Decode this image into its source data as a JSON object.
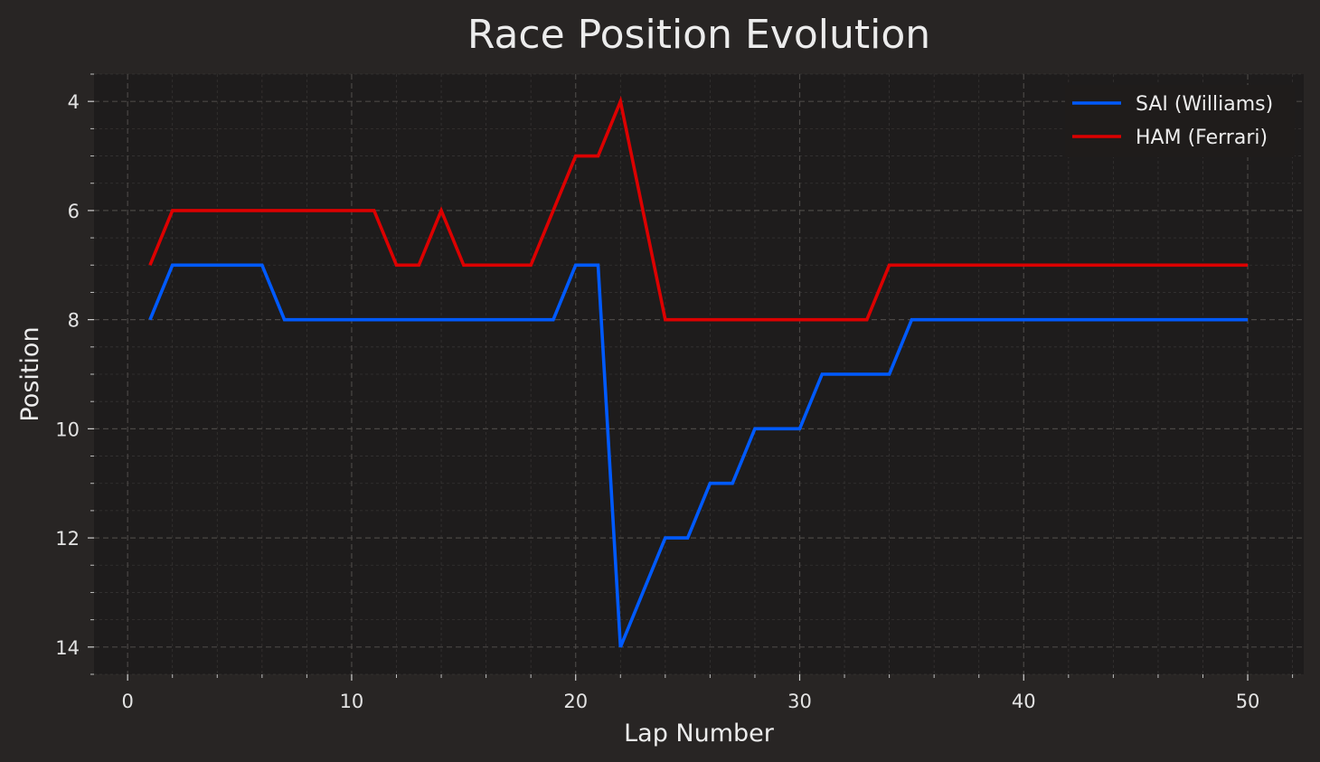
{
  "chart_data": {
    "type": "line",
    "title": "Race Position Evolution",
    "xlabel": "Lap Number",
    "ylabel": "Position",
    "xlim": [
      -1.5,
      52.5
    ],
    "ylim": [
      14.5,
      3.5
    ],
    "y_inverted": true,
    "xticks": [
      0,
      10,
      20,
      30,
      40,
      50
    ],
    "yticks": [
      4,
      6,
      8,
      10,
      12,
      14
    ],
    "grid": true,
    "legend_position": "top-right",
    "series": [
      {
        "name": "SAI (Williams)",
        "color": "#005aff",
        "x": [
          1,
          2,
          3,
          4,
          5,
          6,
          7,
          8,
          9,
          10,
          11,
          12,
          13,
          14,
          15,
          16,
          17,
          18,
          19,
          20,
          21,
          22,
          23,
          24,
          25,
          26,
          27,
          28,
          29,
          30,
          31,
          32,
          33,
          34,
          35,
          36,
          37,
          38,
          39,
          40,
          41,
          42,
          43,
          44,
          45,
          46,
          47,
          48,
          49,
          50
        ],
        "y": [
          8,
          7,
          7,
          7,
          7,
          7,
          8,
          8,
          8,
          8,
          8,
          8,
          8,
          8,
          8,
          8,
          8,
          8,
          8,
          7,
          7,
          14,
          13,
          12,
          12,
          11,
          11,
          10,
          10,
          10,
          9,
          9,
          9,
          9,
          8,
          8,
          8,
          8,
          8,
          8,
          8,
          8,
          8,
          8,
          8,
          8,
          8,
          8,
          8,
          8
        ]
      },
      {
        "name": "HAM (Ferrari)",
        "color": "#dc0000",
        "x": [
          1,
          2,
          3,
          4,
          5,
          6,
          7,
          8,
          9,
          10,
          11,
          12,
          13,
          14,
          15,
          16,
          17,
          18,
          19,
          20,
          21,
          22,
          23,
          24,
          25,
          26,
          27,
          28,
          29,
          30,
          31,
          32,
          33,
          34,
          35,
          36,
          37,
          38,
          39,
          40,
          41,
          42,
          43,
          44,
          45,
          46,
          47,
          48,
          49,
          50
        ],
        "y": [
          7,
          6,
          6,
          6,
          6,
          6,
          6,
          6,
          6,
          6,
          6,
          7,
          7,
          6,
          7,
          7,
          7,
          7,
          6,
          5,
          5,
          4,
          6,
          8,
          8,
          8,
          8,
          8,
          8,
          8,
          8,
          8,
          8,
          7,
          7,
          7,
          7,
          7,
          7,
          7,
          7,
          7,
          7,
          7,
          7,
          7,
          7,
          7,
          7,
          7
        ]
      }
    ]
  },
  "colors": {
    "background": "#282524",
    "plot_background": "#1e1c1c",
    "grid": "#4a4745",
    "text": "#ececec"
  }
}
